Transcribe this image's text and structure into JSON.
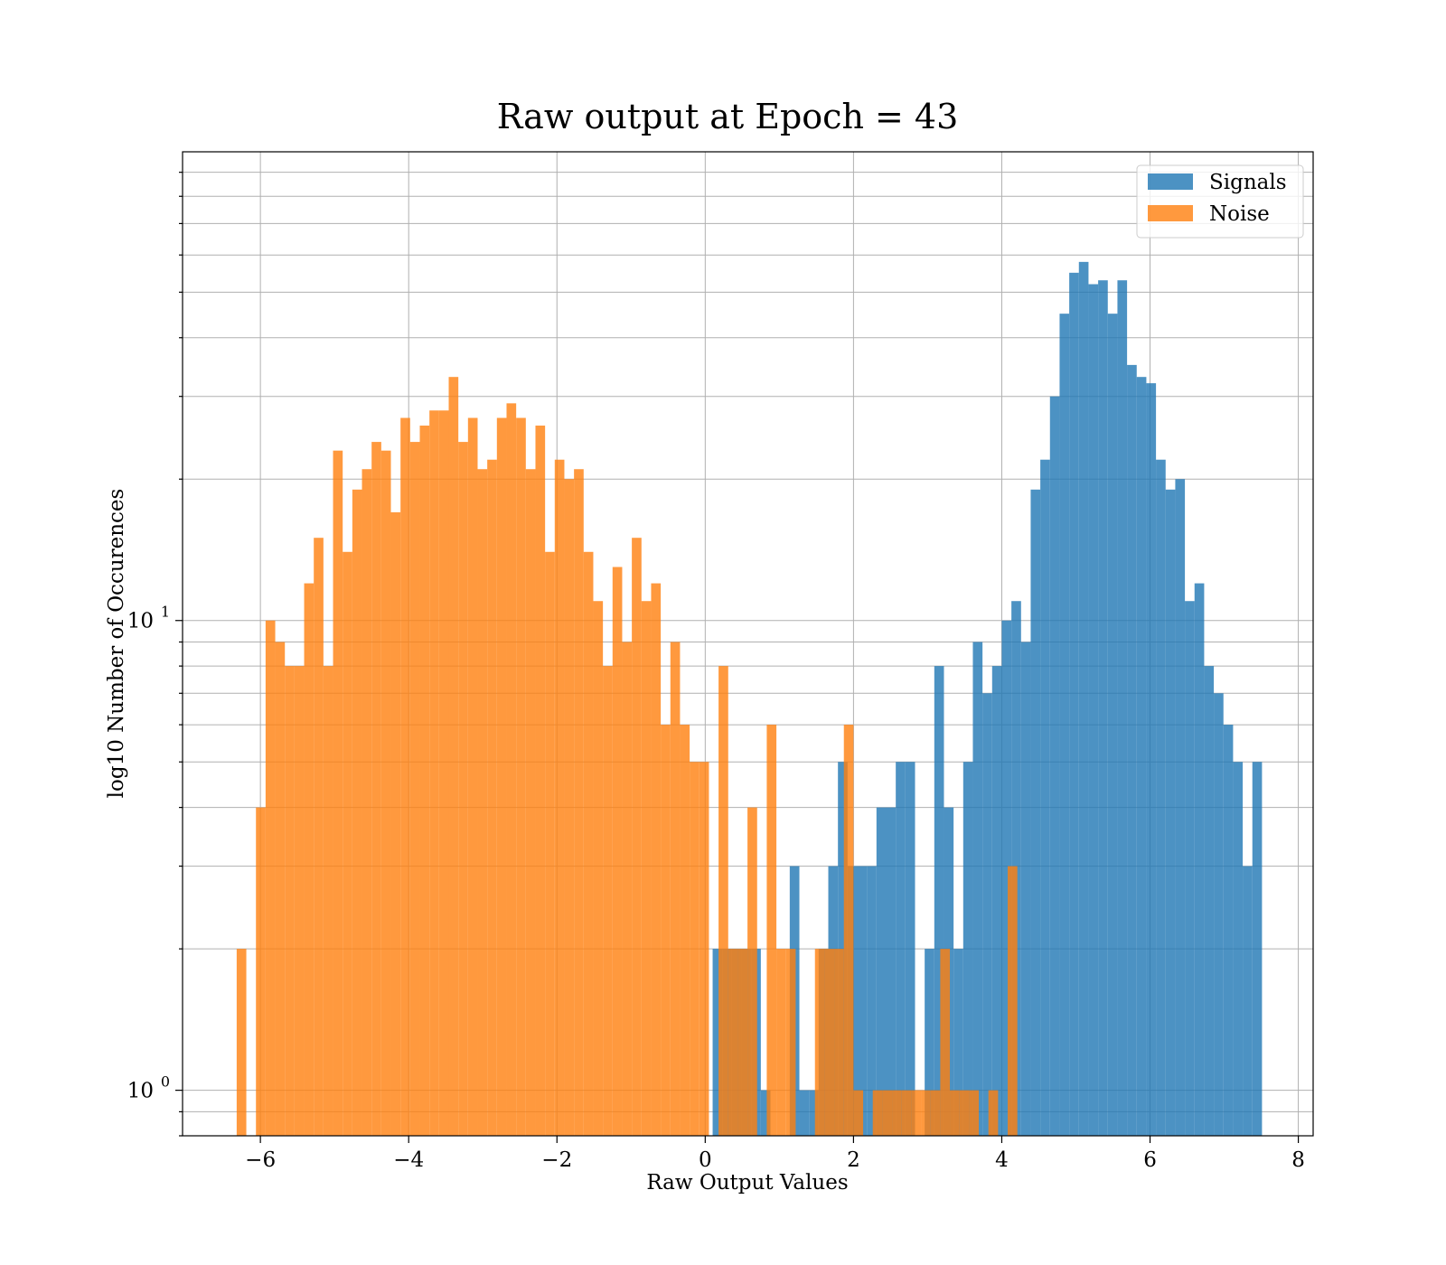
{
  "chart_data": {
    "type": "bar",
    "title": "Raw output at Epoch = 43",
    "xlabel": "Raw Output Values",
    "ylabel": "log10 Number of Occurences",
    "xlim": [
      -7.05,
      8.2
    ],
    "ylim": [
      0.8,
      99.5
    ],
    "yscale": "log",
    "grid": true,
    "grid_minor": true,
    "legend_position": "upper right",
    "x_ticks": [
      -6,
      -4,
      -2,
      0,
      2,
      4,
      6,
      8
    ],
    "x_tick_labels": [
      "−6",
      "−4",
      "−2",
      "0",
      "2",
      "4",
      "6",
      "8"
    ],
    "y_ticks": [
      {
        "value": 1,
        "base": "10",
        "exp": "0"
      },
      {
        "value": 10,
        "base": "10",
        "exp": "1"
      }
    ],
    "series": [
      {
        "name": "Signals",
        "color": "#1f77b4",
        "opacity": 0.8,
        "bin_width": 0.13,
        "bins": [
          [
            0.1,
            2
          ],
          [
            0.23,
            2
          ],
          [
            0.36,
            2
          ],
          [
            0.49,
            2
          ],
          [
            0.62,
            2
          ],
          [
            0.75,
            1
          ],
          [
            1.14,
            3
          ],
          [
            1.27,
            1
          ],
          [
            1.4,
            1
          ],
          [
            1.53,
            2
          ],
          [
            1.66,
            3
          ],
          [
            1.79,
            5
          ],
          [
            1.92,
            3
          ],
          [
            2.05,
            3
          ],
          [
            2.18,
            3
          ],
          [
            2.31,
            4
          ],
          [
            2.44,
            4
          ],
          [
            2.57,
            5
          ],
          [
            2.7,
            5
          ],
          [
            2.96,
            2
          ],
          [
            3.09,
            8
          ],
          [
            3.22,
            4
          ],
          [
            3.35,
            2
          ],
          [
            3.48,
            5
          ],
          [
            3.61,
            9
          ],
          [
            3.74,
            7
          ],
          [
            3.87,
            8
          ],
          [
            4.0,
            10
          ],
          [
            4.13,
            11
          ],
          [
            4.26,
            9
          ],
          [
            4.39,
            19
          ],
          [
            4.52,
            22
          ],
          [
            4.65,
            30
          ],
          [
            4.78,
            45
          ],
          [
            4.91,
            55
          ],
          [
            5.04,
            58
          ],
          [
            5.17,
            52
          ],
          [
            5.3,
            53
          ],
          [
            5.43,
            45
          ],
          [
            5.56,
            53
          ],
          [
            5.69,
            35
          ],
          [
            5.82,
            33
          ],
          [
            5.95,
            32
          ],
          [
            6.08,
            22
          ],
          [
            6.21,
            19
          ],
          [
            6.34,
            20
          ],
          [
            6.47,
            11
          ],
          [
            6.6,
            12
          ],
          [
            6.73,
            8
          ],
          [
            6.86,
            7
          ],
          [
            6.99,
            6
          ],
          [
            7.12,
            5
          ],
          [
            7.25,
            3
          ],
          [
            7.38,
            5
          ]
        ]
      },
      {
        "name": "Noise",
        "color": "#ff7f0e",
        "opacity": 0.8,
        "bin_width": 0.13,
        "bins": [
          [
            -6.32,
            2
          ],
          [
            -6.06,
            4
          ],
          [
            -5.93,
            10
          ],
          [
            -5.8,
            9
          ],
          [
            -5.67,
            8
          ],
          [
            -5.54,
            8
          ],
          [
            -5.41,
            12
          ],
          [
            -5.28,
            15
          ],
          [
            -5.15,
            8
          ],
          [
            -5.02,
            23
          ],
          [
            -4.89,
            14
          ],
          [
            -4.76,
            19
          ],
          [
            -4.63,
            21
          ],
          [
            -4.5,
            24
          ],
          [
            -4.37,
            23
          ],
          [
            -4.24,
            17
          ],
          [
            -4.11,
            27
          ],
          [
            -3.98,
            24
          ],
          [
            -3.85,
            26
          ],
          [
            -3.72,
            28
          ],
          [
            -3.59,
            28
          ],
          [
            -3.46,
            33
          ],
          [
            -3.33,
            24
          ],
          [
            -3.2,
            27
          ],
          [
            -3.07,
            21
          ],
          [
            -2.94,
            22
          ],
          [
            -2.81,
            27
          ],
          [
            -2.68,
            29
          ],
          [
            -2.55,
            27
          ],
          [
            -2.42,
            21
          ],
          [
            -2.29,
            26
          ],
          [
            -2.16,
            14
          ],
          [
            -2.03,
            22
          ],
          [
            -1.9,
            20
          ],
          [
            -1.77,
            21
          ],
          [
            -1.64,
            14
          ],
          [
            -1.51,
            11
          ],
          [
            -1.38,
            8
          ],
          [
            -1.25,
            13
          ],
          [
            -1.12,
            9
          ],
          [
            -0.99,
            15
          ],
          [
            -0.86,
            11
          ],
          [
            -0.73,
            12
          ],
          [
            -0.6,
            6
          ],
          [
            -0.47,
            9
          ],
          [
            -0.34,
            6
          ],
          [
            -0.21,
            5
          ],
          [
            -0.08,
            5
          ],
          [
            0.18,
            8
          ],
          [
            0.31,
            2
          ],
          [
            0.44,
            2
          ],
          [
            0.57,
            4
          ],
          [
            0.83,
            6
          ],
          [
            0.96,
            2
          ],
          [
            1.09,
            2
          ],
          [
            1.48,
            2
          ],
          [
            1.61,
            2
          ],
          [
            1.74,
            2
          ],
          [
            1.87,
            6
          ],
          [
            2.0,
            1
          ],
          [
            2.26,
            1
          ],
          [
            2.39,
            1
          ],
          [
            2.52,
            1
          ],
          [
            2.65,
            1
          ],
          [
            2.78,
            1
          ],
          [
            2.91,
            1
          ],
          [
            3.04,
            1
          ],
          [
            3.17,
            2
          ],
          [
            3.3,
            1
          ],
          [
            3.43,
            1
          ],
          [
            3.56,
            1
          ],
          [
            3.82,
            1
          ],
          [
            4.08,
            3
          ]
        ]
      }
    ]
  }
}
